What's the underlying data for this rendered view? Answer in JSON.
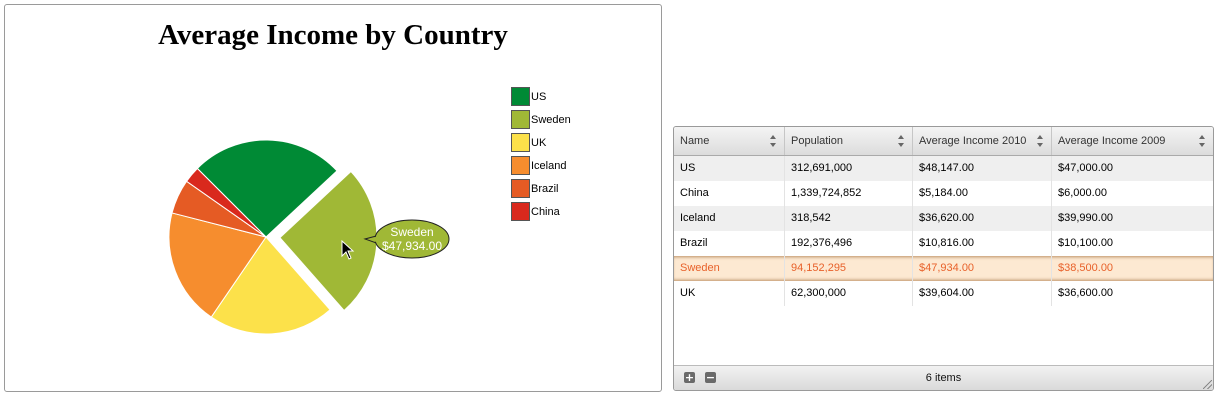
{
  "chart_data": {
    "type": "pie",
    "title": "Average Income by Country",
    "categories": [
      "US",
      "Sweden",
      "UK",
      "Iceland",
      "Brazil",
      "China"
    ],
    "values": [
      48147,
      47934,
      39604,
      36620,
      10816,
      5184
    ],
    "colors": [
      "#008a35",
      "#a0b836",
      "#fce14a",
      "#f68d2e",
      "#e55b24",
      "#d9291d"
    ],
    "exploded": "Sweden",
    "legend_position": "right",
    "tooltip": {
      "title": "Sweden",
      "value": "$47,934.00"
    }
  },
  "grid": {
    "columns": [
      "Name",
      "Population",
      "Average Income 2010",
      "Average Income 2009"
    ],
    "rows": [
      [
        "US",
        "312,691,000",
        "$48,147.00",
        "$47,000.00"
      ],
      [
        "China",
        "1,339,724,852",
        "$5,184.00",
        "$6,000.00"
      ],
      [
        "Iceland",
        "318,542",
        "$36,620.00",
        "$39,990.00"
      ],
      [
        "Brazil",
        "192,376,496",
        "$10,816.00",
        "$10,100.00"
      ],
      [
        "Sweden",
        "94,152,295",
        "$47,934.00",
        "$38,500.00"
      ],
      [
        "UK",
        "62,300,000",
        "$39,604.00",
        "$36,600.00"
      ]
    ],
    "selected_row": 4,
    "footer": {
      "add_icon": "plus-icon",
      "remove_icon": "minus-icon",
      "count_text": "6 items"
    }
  }
}
